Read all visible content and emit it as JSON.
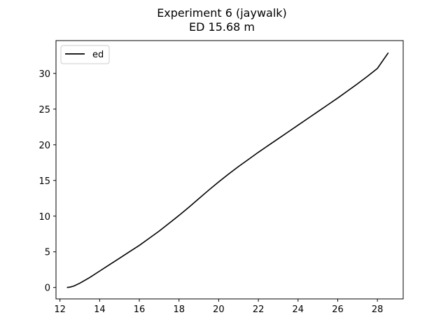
{
  "chart_data": {
    "type": "line",
    "title": "Experiment 6 (jaywalk)",
    "subtitle": "ED 15.68 m",
    "xlabel": "",
    "ylabel": "",
    "xlim": [
      11.8,
      29.3
    ],
    "ylim": [
      -1.6,
      34.6
    ],
    "xticks": [
      12,
      14,
      16,
      18,
      20,
      22,
      24,
      26,
      28
    ],
    "yticks": [
      0,
      5,
      10,
      15,
      20,
      25,
      30
    ],
    "grid": false,
    "legend_position": "top-left",
    "series": [
      {
        "name": "ed",
        "color": "#000000",
        "x": [
          12.35,
          12.5,
          12.7,
          13.0,
          13.5,
          14.0,
          14.5,
          15.0,
          15.5,
          16.0,
          16.5,
          17.0,
          17.5,
          18.0,
          18.5,
          19.0,
          19.5,
          20.0,
          20.5,
          21.0,
          21.5,
          22.0,
          22.5,
          23.0,
          23.5,
          24.0,
          24.5,
          25.0,
          25.5,
          26.0,
          26.5,
          27.0,
          27.5,
          28.0,
          28.55
        ],
        "y": [
          0.0,
          0.05,
          0.2,
          0.6,
          1.4,
          2.3,
          3.2,
          4.1,
          5.0,
          5.9,
          6.9,
          7.9,
          9.0,
          10.1,
          11.25,
          12.45,
          13.65,
          14.8,
          15.9,
          16.95,
          17.95,
          18.95,
          19.9,
          20.85,
          21.8,
          22.75,
          23.7,
          24.65,
          25.6,
          26.55,
          27.55,
          28.55,
          29.6,
          30.7,
          32.9
        ]
      }
    ]
  }
}
